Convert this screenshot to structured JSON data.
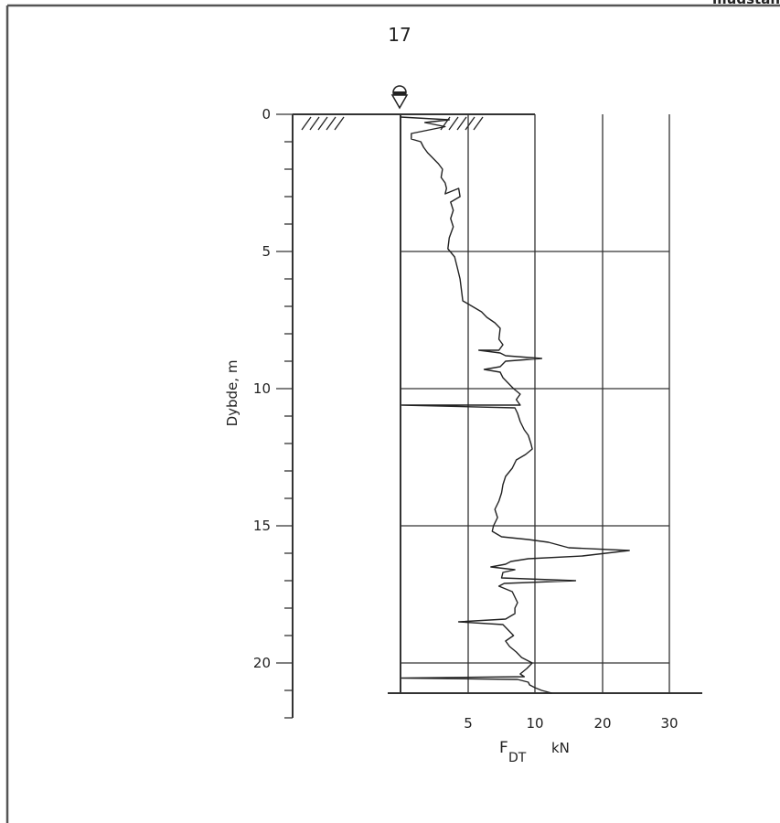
{
  "page": {
    "header_text": "mudstan",
    "page_number": "17"
  },
  "chart_data": {
    "type": "line",
    "title": "",
    "ylabel": "Dybde, m",
    "xlabel_main": "F",
    "xlabel_sub": "DT",
    "xlabel_unit": "kN",
    "y_axis": {
      "range": [
        0,
        22
      ],
      "major_ticks": [
        0,
        5,
        10,
        15,
        20
      ],
      "tick_labels": [
        "0",
        "5",
        "10",
        "15",
        "20"
      ]
    },
    "x_axis": {
      "scale": "piecewise",
      "ticks": [
        5,
        10,
        20,
        30
      ],
      "tick_labels": [
        "5",
        "10",
        "20",
        "30"
      ]
    },
    "grid": true,
    "series": [
      {
        "points": [
          [
            0,
            0.1
          ],
          [
            3.6,
            0.2
          ],
          [
            1.8,
            0.3
          ],
          [
            3.3,
            0.45
          ],
          [
            0.8,
            0.7
          ],
          [
            0.8,
            0.9
          ],
          [
            1.5,
            1.0
          ],
          [
            1.7,
            1.2
          ],
          [
            2.0,
            1.4
          ],
          [
            2.4,
            1.6
          ],
          [
            2.8,
            1.8
          ],
          [
            3.1,
            2.0
          ],
          [
            3.0,
            2.3
          ],
          [
            3.3,
            2.5
          ],
          [
            3.4,
            2.7
          ],
          [
            3.3,
            2.9
          ],
          [
            4.3,
            2.7
          ],
          [
            4.4,
            3.0
          ],
          [
            3.7,
            3.2
          ],
          [
            3.9,
            3.5
          ],
          [
            3.7,
            3.8
          ],
          [
            3.9,
            4.1
          ],
          [
            3.6,
            4.5
          ],
          [
            3.5,
            4.9
          ],
          [
            4.0,
            5.2
          ],
          [
            4.2,
            5.6
          ],
          [
            4.4,
            6.0
          ],
          [
            4.5,
            6.4
          ],
          [
            4.6,
            6.8
          ],
          [
            5.3,
            7.0
          ],
          [
            6.0,
            7.2
          ],
          [
            6.4,
            7.4
          ],
          [
            7.0,
            7.6
          ],
          [
            7.4,
            7.8
          ],
          [
            7.3,
            8.2
          ],
          [
            7.6,
            8.4
          ],
          [
            7.3,
            8.6
          ],
          [
            5.8,
            8.6
          ],
          [
            7.4,
            8.7
          ],
          [
            7.8,
            8.8
          ],
          [
            11.0,
            8.9
          ],
          [
            7.8,
            9.0
          ],
          [
            7.4,
            9.2
          ],
          [
            6.2,
            9.3
          ],
          [
            7.4,
            9.4
          ],
          [
            7.6,
            9.6
          ],
          [
            8.0,
            9.8
          ],
          [
            8.4,
            10.0
          ],
          [
            8.9,
            10.2
          ],
          [
            8.6,
            10.4
          ],
          [
            8.9,
            10.6
          ],
          [
            0.1,
            10.6
          ],
          [
            8.5,
            10.7
          ],
          [
            8.7,
            10.9
          ],
          [
            8.9,
            11.2
          ],
          [
            9.2,
            11.5
          ],
          [
            9.5,
            11.7
          ],
          [
            9.7,
            12.0
          ],
          [
            9.8,
            12.2
          ],
          [
            9.3,
            12.4
          ],
          [
            8.6,
            12.6
          ],
          [
            8.3,
            12.9
          ],
          [
            7.8,
            13.2
          ],
          [
            7.6,
            13.5
          ],
          [
            7.5,
            13.8
          ],
          [
            7.3,
            14.1
          ],
          [
            7.0,
            14.4
          ],
          [
            7.2,
            14.7
          ],
          [
            6.9,
            15.0
          ],
          [
            6.8,
            15.2
          ],
          [
            7.5,
            15.4
          ],
          [
            9.5,
            15.5
          ],
          [
            12.0,
            15.6
          ],
          [
            15.0,
            15.8
          ],
          [
            24.0,
            15.9
          ],
          [
            17.0,
            16.1
          ],
          [
            9.5,
            16.2
          ],
          [
            8.2,
            16.3
          ],
          [
            7.8,
            16.4
          ],
          [
            6.7,
            16.5
          ],
          [
            8.5,
            16.6
          ],
          [
            7.6,
            16.7
          ],
          [
            7.5,
            16.9
          ],
          [
            16.0,
            17.0
          ],
          [
            7.7,
            17.1
          ],
          [
            7.3,
            17.2
          ],
          [
            8.3,
            17.4
          ],
          [
            8.5,
            17.6
          ],
          [
            8.7,
            17.8
          ],
          [
            8.5,
            18.0
          ],
          [
            8.5,
            18.2
          ],
          [
            7.8,
            18.4
          ],
          [
            4.3,
            18.5
          ],
          [
            7.6,
            18.6
          ],
          [
            8.0,
            18.8
          ],
          [
            8.4,
            19.0
          ],
          [
            7.8,
            19.2
          ],
          [
            8.1,
            19.4
          ],
          [
            8.6,
            19.6
          ],
          [
            9.0,
            19.8
          ],
          [
            9.8,
            20.0
          ],
          [
            9.4,
            20.2
          ],
          [
            8.9,
            20.4
          ],
          [
            9.2,
            20.5
          ],
          [
            0.1,
            20.55
          ],
          [
            8.7,
            20.6
          ],
          [
            9.5,
            20.7
          ],
          [
            9.6,
            20.8
          ],
          [
            10.0,
            20.9
          ],
          [
            11.0,
            21.0
          ],
          [
            12.5,
            21.1
          ]
        ]
      }
    ]
  }
}
